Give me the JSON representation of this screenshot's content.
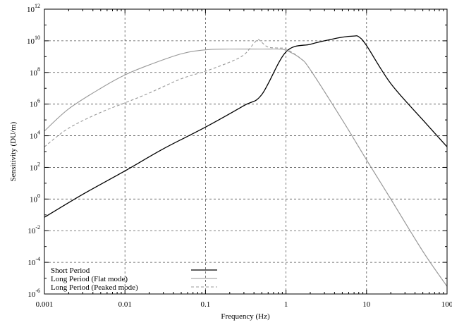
{
  "chart_data": {
    "type": "line",
    "title": "",
    "xlabel": "Frequency (Hz)",
    "ylabel": "Sensitivity (DU/m)",
    "x_scale": "log",
    "y_scale": "log",
    "xlim": [
      0.001,
      100
    ],
    "ylim": [
      1e-06,
      1000000000000.0
    ],
    "grid": true,
    "grid_style": "dashed",
    "legend_position": "bottom-left",
    "x_ticks": [
      {
        "value": 0.001,
        "label": "0.001"
      },
      {
        "value": 0.01,
        "label": "0.01"
      },
      {
        "value": 0.1,
        "label": "0.1"
      },
      {
        "value": 1,
        "label": "1"
      },
      {
        "value": 10,
        "label": "10"
      },
      {
        "value": 100,
        "label": "100"
      }
    ],
    "y_ticks": [
      {
        "value": 1e-06,
        "base": "10",
        "exp": "-6"
      },
      {
        "value": 0.0001,
        "base": "10",
        "exp": "-4"
      },
      {
        "value": 0.01,
        "base": "10",
        "exp": "-2"
      },
      {
        "value": 1,
        "base": "10",
        "exp": "0"
      },
      {
        "value": 100,
        "base": "10",
        "exp": "2"
      },
      {
        "value": 10000.0,
        "base": "10",
        "exp": "4"
      },
      {
        "value": 1000000.0,
        "base": "10",
        "exp": "6"
      },
      {
        "value": 100000000.0,
        "base": "10",
        "exp": "8"
      },
      {
        "value": 10000000000.0,
        "base": "10",
        "exp": "10"
      },
      {
        "value": 1000000000000.0,
        "base": "10",
        "exp": "12"
      }
    ],
    "series": [
      {
        "name": "Short Period",
        "color": "#000000",
        "dash": "solid",
        "x": [
          0.001,
          0.003,
          0.01,
          0.03,
          0.1,
          0.3,
          0.5,
          1,
          2,
          3,
          5,
          7,
          8,
          10,
          20,
          50,
          100
        ],
        "y": [
          0.07,
          2,
          60,
          1500,
          35000.0,
          800000.0,
          4000000.0,
          2000000000.0,
          6000000000.0,
          10000000000.0,
          17000000000.0,
          20000000000.0,
          18000000000.0,
          5000000000.0,
          20000000.0,
          100000.0,
          2000
        ]
      },
      {
        "name": "Long Period (Flat mode)",
        "color": "#999999",
        "dash": "solid",
        "x": [
          0.001,
          0.002,
          0.005,
          0.01,
          0.02,
          0.05,
          0.1,
          0.2,
          0.5,
          0.8,
          1,
          1.5,
          2,
          5,
          10,
          20,
          50,
          100
        ],
        "y": [
          20000.0,
          500000.0,
          10000000.0,
          70000000.0,
          300000000.0,
          1500000000.0,
          2700000000.0,
          3000000000.0,
          3000000000.0,
          3000000000.0,
          2500000000.0,
          800000000.0,
          150000000.0,
          100000.0,
          300,
          1,
          0.0005,
          3e-06
        ]
      },
      {
        "name": "Long Period (Peaked mode)",
        "color": "#999999",
        "dash": "dashed",
        "x": [
          0.001,
          0.002,
          0.005,
          0.01,
          0.02,
          0.05,
          0.1,
          0.2,
          0.3,
          0.4,
          0.45,
          0.5,
          0.6,
          0.8,
          1,
          1.5,
          2,
          5,
          10,
          20,
          50,
          100
        ],
        "y": [
          2000,
          30000.0,
          300000.0,
          1200000.0,
          5000000.0,
          40000000.0,
          120000000.0,
          450000000.0,
          1300000000.0,
          7000000000.0,
          12000000000.0,
          8000000000.0,
          4000000000.0,
          3500000000.0,
          3000000000.0,
          800000000.0,
          150000000.0,
          100000.0,
          300,
          1,
          0.0005,
          3e-06
        ]
      }
    ]
  }
}
